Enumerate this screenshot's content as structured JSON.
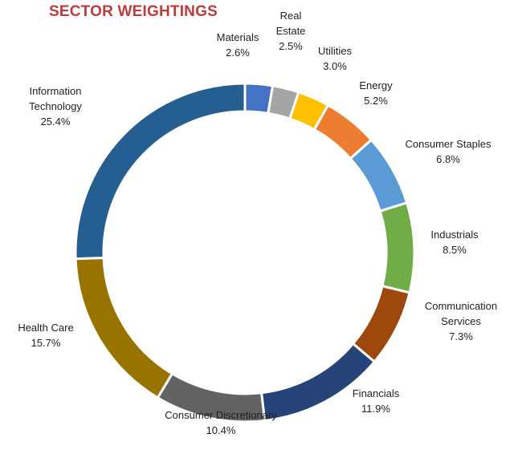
{
  "chart_data": {
    "type": "pie",
    "style": "donut",
    "title": "SECTOR WEIGHTINGS",
    "slices": [
      {
        "name": "Materials",
        "label_lines": [
          "Materials"
        ],
        "value": 2.6,
        "value_label": "2.6%",
        "color": "#4472C4"
      },
      {
        "name": "Real Estate",
        "label_lines": [
          "Real",
          "Estate"
        ],
        "value": 2.5,
        "value_label": "2.5%",
        "color": "#A5A5A5"
      },
      {
        "name": "Utilities",
        "label_lines": [
          "Utilities"
        ],
        "value": 3.0,
        "value_label": "3.0%",
        "color": "#FFC000"
      },
      {
        "name": "Energy",
        "label_lines": [
          "Energy"
        ],
        "value": 5.2,
        "value_label": "5.2%",
        "color": "#ED7D31"
      },
      {
        "name": "Consumer Staples",
        "label_lines": [
          "Consumer Staples"
        ],
        "value": 6.8,
        "value_label": "6.8%",
        "color": "#5B9BD5"
      },
      {
        "name": "Industrials",
        "label_lines": [
          "Industrials"
        ],
        "value": 8.5,
        "value_label": "8.5%",
        "color": "#70AD47"
      },
      {
        "name": "Communication Services",
        "label_lines": [
          "Communication",
          "Services"
        ],
        "value": 7.3,
        "value_label": "7.3%",
        "color": "#9E480E"
      },
      {
        "name": "Financials",
        "label_lines": [
          "Financials"
        ],
        "value": 11.9,
        "value_label": "11.9%",
        "color": "#264478"
      },
      {
        "name": "Consumer Discretionary",
        "label_lines": [
          "Consumer Discretionary"
        ],
        "value": 10.4,
        "value_label": "10.4%",
        "color": "#636363"
      },
      {
        "name": "Health Care",
        "label_lines": [
          "Health Care"
        ],
        "value": 15.7,
        "value_label": "15.7%",
        "color": "#997300"
      },
      {
        "name": "Information Technology",
        "label_lines": [
          "Information",
          "Technology"
        ],
        "value": 25.4,
        "value_label": "25.4%",
        "color": "#255E91"
      }
    ]
  }
}
